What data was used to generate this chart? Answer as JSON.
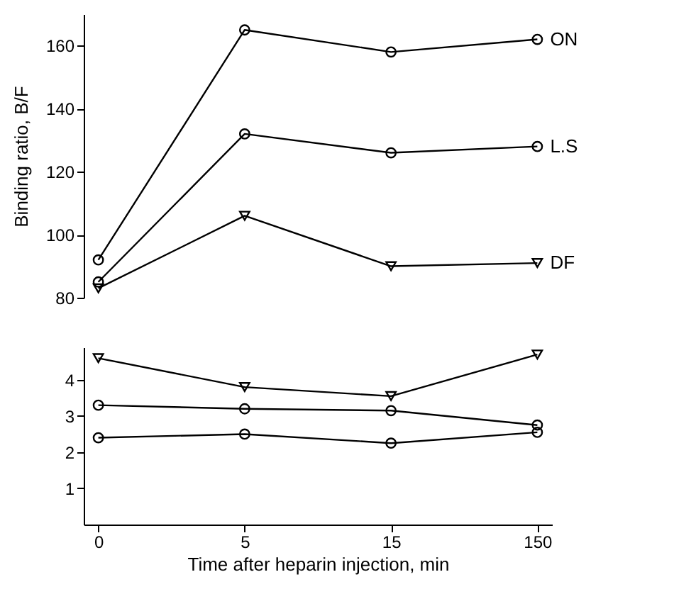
{
  "chart_data": [
    {
      "type": "line",
      "ylabel": "Binding ratio,  B/F",
      "categories": [
        "0",
        "5",
        "15",
        "150"
      ],
      "ylim": [
        80,
        170
      ],
      "yticks": [
        80,
        100,
        120,
        140,
        160
      ],
      "tick_labels": "y",
      "grid": false,
      "series": [
        {
          "name": "ON",
          "color": "#000000",
          "marker": "circle",
          "values": [
            92,
            165,
            158,
            162
          ]
        },
        {
          "name": "L.S",
          "color": "#000000",
          "marker": "circle",
          "values": [
            85,
            132,
            126,
            128
          ]
        },
        {
          "name": "DF",
          "color": "#000000",
          "marker": "triangle",
          "values": [
            83,
            106,
            90,
            91
          ]
        }
      ]
    },
    {
      "type": "line",
      "xlabel": "Time after heparin injection,   min",
      "categories": [
        "0",
        "5",
        "15",
        "150"
      ],
      "ylim": [
        0,
        4.9
      ],
      "yticks": [
        1,
        2,
        3,
        4
      ],
      "grid": false,
      "series": [
        {
          "color": "#000000",
          "marker": "circle",
          "values": [
            2.4,
            2.5,
            2.25,
            2.55
          ]
        },
        {
          "color": "#000000",
          "marker": "circle",
          "values": [
            3.3,
            3.2,
            3.15,
            2.75
          ]
        },
        {
          "color": "#000000",
          "marker": "triangle",
          "values": [
            4.6,
            3.8,
            3.55,
            4.7
          ]
        }
      ]
    }
  ]
}
